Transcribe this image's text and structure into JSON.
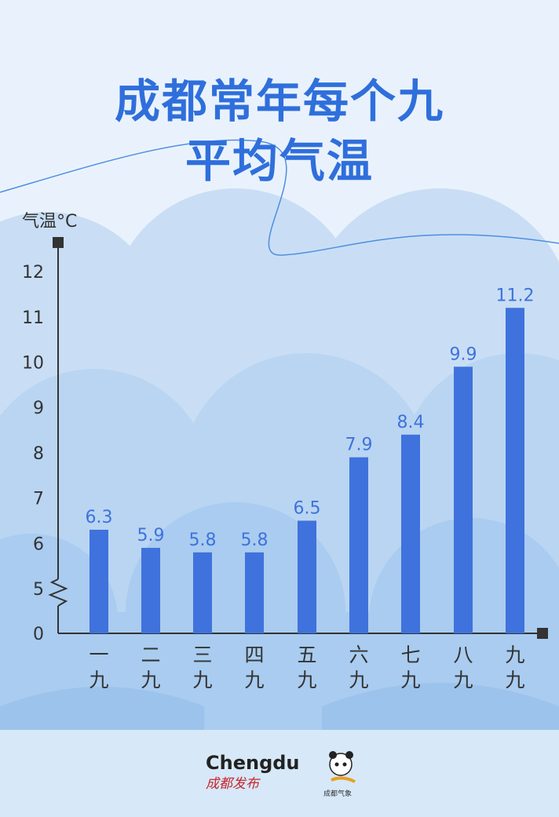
{
  "title": {
    "line1": "成都常年每个九",
    "line2": "平均气温"
  },
  "chart_data": {
    "type": "bar",
    "ylabel": "气温°C",
    "categories": [
      [
        "一",
        "九"
      ],
      [
        "二",
        "九"
      ],
      [
        "三",
        "九"
      ],
      [
        "四",
        "九"
      ],
      [
        "五",
        "九"
      ],
      [
        "六",
        "九"
      ],
      [
        "七",
        "九"
      ],
      [
        "八",
        "九"
      ],
      [
        "九",
        "九"
      ]
    ],
    "values": [
      6.3,
      5.9,
      5.8,
      5.8,
      6.5,
      7.9,
      8.4,
      9.9,
      11.2
    ],
    "value_labels": [
      "6.3",
      "5.9",
      "5.8",
      "5.8",
      "6.5",
      "7.9",
      "8.4",
      "9.9",
      "11.2"
    ],
    "yticks": [
      "0",
      "5",
      "6",
      "7",
      "8",
      "9",
      "10",
      "11",
      "12"
    ],
    "ylim": [
      5,
      12.5
    ],
    "axis_break": [
      0,
      5
    ],
    "grid": false,
    "bar_color": "#3f72dc",
    "label_color": "#3f72dc"
  },
  "logos": {
    "chengdu_fabu": {
      "en": "Chengdu",
      "cn": "成都发布"
    },
    "chengdu_qixiang": "成都气象"
  }
}
